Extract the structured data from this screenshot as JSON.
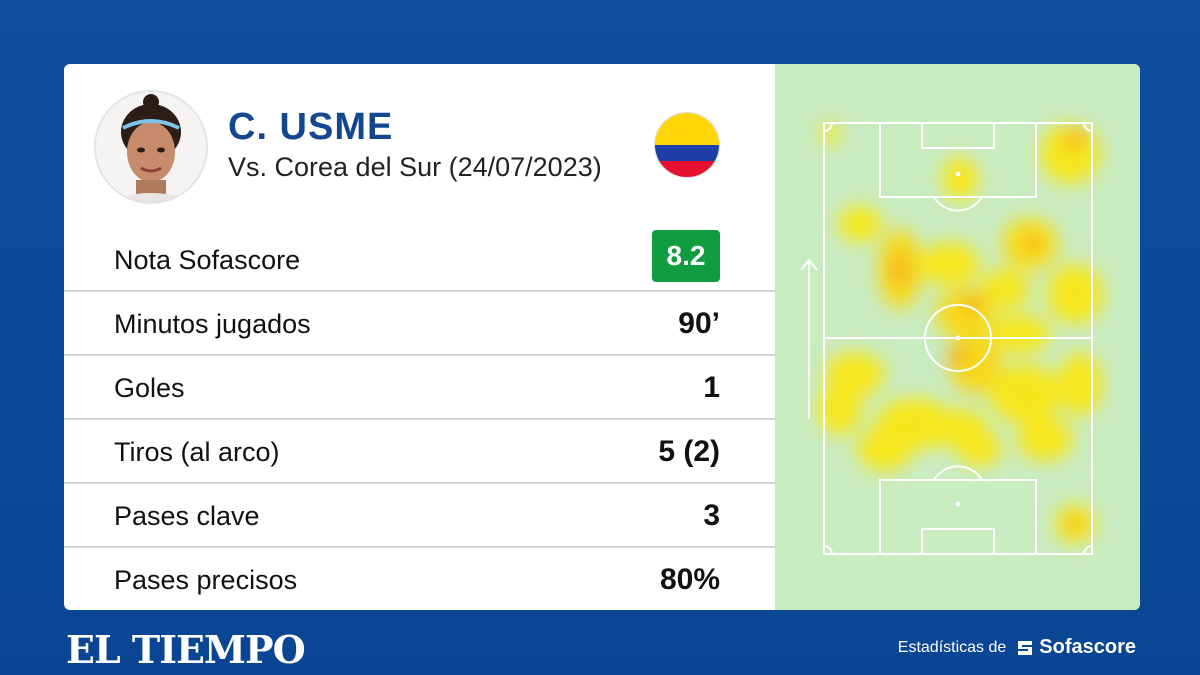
{
  "player": {
    "name": "C. USME",
    "match": "Vs. Corea del Sur (24/07/2023)"
  },
  "stats": [
    {
      "label": "Nota Sofascore",
      "value": "8.2",
      "type": "rating"
    },
    {
      "label": "Minutos jugados",
      "value": "90’"
    },
    {
      "label": "Goles",
      "value": "1"
    },
    {
      "label": "Tiros (al arco)",
      "value": "5 (2)"
    },
    {
      "label": "Pases clave",
      "value": "3"
    },
    {
      "label": "Pases precisos",
      "value": "80%"
    }
  ],
  "footer": {
    "brand": "EL TIEMPO",
    "credit_prefix": "Estadísticas de",
    "credit_logo": "Sofascore"
  },
  "colors": {
    "accent": "#13478f",
    "rating_bg": "#0f9d3f",
    "pitch_bg": "#c9ebc0"
  },
  "icons": {
    "flag": "colombia-flag-icon",
    "direction": "arrow-up-icon"
  }
}
